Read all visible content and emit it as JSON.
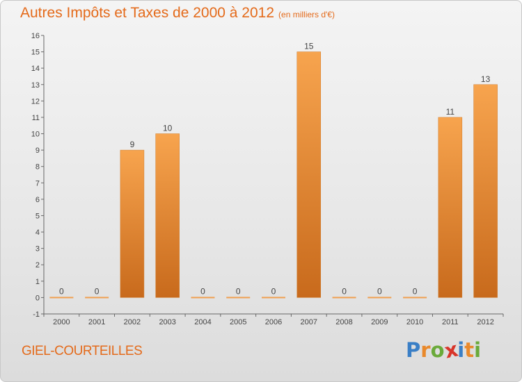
{
  "title": "Autres Impôts et Taxes de 2000 à 2012",
  "title_unit": "(en milliers d'€)",
  "place": "GIEL-COURTEILLES",
  "logo": {
    "letters": [
      "P",
      "r",
      "o",
      "x",
      "i",
      "t",
      "i"
    ],
    "colors": [
      "#3a7fc6",
      "#e9892b",
      "#6aaa3a",
      "#d8352a",
      "#3a7fc6",
      "#e9892b",
      "#6aaa3a"
    ]
  },
  "colors": {
    "accent": "#e46a1a",
    "bar_light": "#f7a44e",
    "bar_dark": "#c86a1c"
  },
  "chart_data": {
    "type": "bar",
    "categories": [
      "2000",
      "2001",
      "2002",
      "2003",
      "2004",
      "2005",
      "2006",
      "2007",
      "2008",
      "2009",
      "2010",
      "2011",
      "2012"
    ],
    "values": [
      0,
      0,
      9,
      10,
      0,
      0,
      0,
      15,
      0,
      0,
      0,
      11,
      13
    ],
    "title": "Autres Impôts et Taxes de 2000 à 2012",
    "ylim": [
      -1,
      16
    ],
    "yticks": [
      -1,
      0,
      1,
      2,
      3,
      4,
      5,
      6,
      7,
      8,
      9,
      10,
      11,
      12,
      13,
      14,
      15,
      16
    ],
    "grid": false,
    "legend": "none"
  }
}
